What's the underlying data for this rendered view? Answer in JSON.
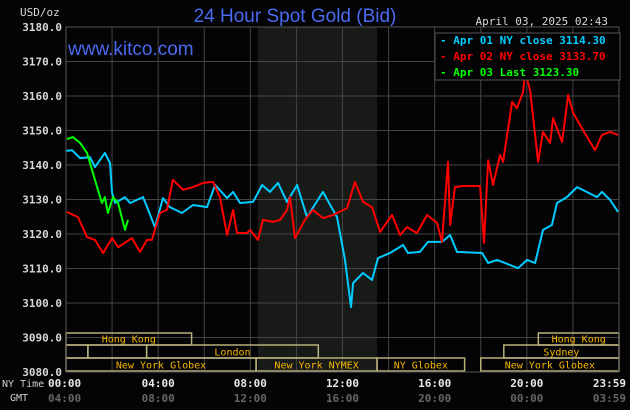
{
  "chart_data": {
    "type": "line",
    "title": "24 Hour Spot Gold (Bid)",
    "watermark": "www.kitco.com",
    "timestamp": "April 03, 2025 02:43",
    "ylabel": "USD/oz",
    "ylim": [
      3080,
      3180
    ],
    "yticks": [
      "3180.0",
      "3170.0",
      "3160.0",
      "3150.0",
      "3140.0",
      "3130.0",
      "3120.0",
      "3110.0",
      "3100.0",
      "3090.0",
      "3080.0"
    ],
    "xlim_hours": [
      0,
      24
    ],
    "x_row_labels": {
      "ny": "NY Time",
      "gmt": "GMT"
    },
    "xticks_ny": [
      "00:00",
      "04:00",
      "08:00",
      "12:00",
      "16:00",
      "20:00",
      "23:59"
    ],
    "xticks_gmt": [
      "04:00",
      "08:00",
      "12:00",
      "16:00",
      "20:00",
      "00:00",
      "03:59"
    ],
    "grid": true,
    "legend_position": "top-right",
    "highlight_hours": [
      8.33,
      13.5
    ],
    "series": [
      {
        "name": "Apr 01 NY close",
        "legend_value": "3114.30",
        "color": "#00ccff",
        "x": [
          0,
          0.26,
          0.61,
          1.04,
          1.26,
          1.69,
          1.91,
          2.0,
          2.13,
          2.56,
          2.78,
          3.34,
          3.52,
          3.86,
          4.21,
          4.51,
          5.03,
          5.51,
          6.12,
          6.47,
          6.99,
          7.25,
          7.55,
          8.12,
          8.51,
          8.85,
          9.2,
          9.59,
          10.03,
          10.46,
          11.15,
          11.76,
          12.11,
          12.37,
          12.46,
          12.89,
          13.28,
          13.54,
          14.06,
          14.63,
          14.84,
          15.36,
          15.71,
          16.32,
          16.67,
          16.97,
          18.06,
          18.32,
          18.71,
          19.27,
          19.62,
          20.01,
          20.36,
          20.7,
          21.09,
          21.31,
          21.74,
          22.18,
          23.05,
          23.26,
          23.61,
          23.96
        ],
        "y": [
          3144.1,
          3144.3,
          3142.0,
          3142.3,
          3139.4,
          3143.5,
          3140.6,
          3131.9,
          3129.0,
          3130.7,
          3129.0,
          3130.7,
          3127.8,
          3122.0,
          3130.4,
          3127.8,
          3126.1,
          3128.4,
          3127.8,
          3134.2,
          3130.4,
          3132.2,
          3129.0,
          3129.3,
          3134.2,
          3132.2,
          3134.8,
          3129.3,
          3134.2,
          3124.9,
          3132.2,
          3124.9,
          3112.5,
          3098.8,
          3105.8,
          3108.7,
          3106.7,
          3113.0,
          3114.5,
          3116.8,
          3114.5,
          3114.8,
          3117.7,
          3117.7,
          3119.7,
          3114.8,
          3114.5,
          3111.6,
          3112.5,
          3111.0,
          3110.1,
          3112.5,
          3111.6,
          3121.2,
          3122.6,
          3129.0,
          3130.7,
          3133.6,
          3130.7,
          3132.2,
          3129.9,
          3126.4
        ]
      },
      {
        "name": "Apr 02 NY close",
        "legend_value": "3133.70",
        "color": "#ff0000",
        "x": [
          0.04,
          0.52,
          0.91,
          1.26,
          1.61,
          2.0,
          2.26,
          2.86,
          3.21,
          3.52,
          3.73,
          4.08,
          4.38,
          4.64,
          5.08,
          5.51,
          5.95,
          6.38,
          6.68,
          6.99,
          7.25,
          7.42,
          7.86,
          7.99,
          8.33,
          8.55,
          8.98,
          9.29,
          9.59,
          9.72,
          9.94,
          10.37,
          10.72,
          11.15,
          11.59,
          12.2,
          12.54,
          12.89,
          13.28,
          13.63,
          14.15,
          14.5,
          14.8,
          15.23,
          15.67,
          16.1,
          16.32,
          16.58,
          16.67,
          16.88,
          17.19,
          17.97,
          18.14,
          18.32,
          18.53,
          18.84,
          18.97,
          19.36,
          19.57,
          19.84,
          19.92,
          20.14,
          20.49,
          20.7,
          21.01,
          21.14,
          21.53,
          21.79,
          22.01,
          22.44,
          22.96,
          23.26,
          23.61,
          23.96
        ],
        "y": [
          3126.4,
          3124.9,
          3119.1,
          3118.3,
          3114.5,
          3118.8,
          3116.2,
          3118.8,
          3114.8,
          3118.3,
          3118.3,
          3126.1,
          3127.0,
          3135.7,
          3132.8,
          3133.6,
          3134.8,
          3135.1,
          3130.7,
          3119.7,
          3127.0,
          3120.3,
          3120.3,
          3121.2,
          3118.3,
          3124.1,
          3123.5,
          3124.1,
          3127.0,
          3130.7,
          3118.8,
          3124.1,
          3127.0,
          3124.6,
          3125.5,
          3127.5,
          3135.1,
          3129.3,
          3127.8,
          3120.6,
          3125.5,
          3119.7,
          3122.0,
          3120.3,
          3125.5,
          3123.2,
          3117.7,
          3140.9,
          3122.6,
          3133.6,
          3133.9,
          3133.9,
          3117.4,
          3141.4,
          3134.2,
          3142.9,
          3140.9,
          3158.3,
          3156.5,
          3161.2,
          3167.0,
          3161.7,
          3140.9,
          3149.6,
          3146.4,
          3153.6,
          3146.7,
          3160.3,
          3155.1,
          3150.1,
          3144.3,
          3148.7,
          3149.6,
          3148.7
        ]
      },
      {
        "name": "Apr 03 Last",
        "legend_value": "3123.30",
        "color": "#00ff00",
        "x": [
          0.04,
          0.3,
          0.61,
          0.91,
          1.13,
          1.35,
          1.56,
          1.69,
          1.82,
          2.04,
          2.26,
          2.56,
          2.69
        ],
        "y": [
          3147.5,
          3148.1,
          3146.4,
          3143.5,
          3138.6,
          3133.6,
          3129.0,
          3130.7,
          3126.1,
          3130.7,
          3129.0,
          3121.2,
          3124.1
        ]
      }
    ],
    "sessions": [
      {
        "label": "Hong Kong",
        "row": 0,
        "start": 0,
        "end": 5.45
      },
      {
        "label": "Hong Kong",
        "row": 0,
        "start": 20.5,
        "end": 24
      },
      {
        "label": "",
        "row": 1,
        "start": 0,
        "end": 0.95
      },
      {
        "label": "",
        "row": 1,
        "start": 0.95,
        "end": 3.5
      },
      {
        "label": "London",
        "row": 1,
        "start": 3.5,
        "end": 10.95
      },
      {
        "label": "Sydney",
        "row": 1,
        "start": 19.0,
        "end": 24
      },
      {
        "label": "New York Globex",
        "row": 2,
        "start": 0,
        "end": 8.25
      },
      {
        "label": "New York NYMEX",
        "row": 2,
        "start": 8.25,
        "end": 13.5
      },
      {
        "label": "NY Globex",
        "row": 2,
        "start": 13.5,
        "end": 17.3
      },
      {
        "label": "New York Globex",
        "row": 2,
        "start": 18.0,
        "end": 24
      }
    ]
  }
}
